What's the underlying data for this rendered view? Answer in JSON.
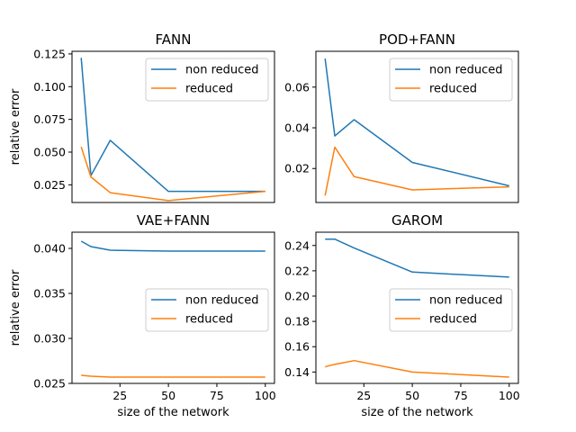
{
  "colors": {
    "non_reduced": "#1f77b4",
    "reduced": "#ff7f0e"
  },
  "chart_data": [
    {
      "type": "line",
      "title": "FANN",
      "xlabel": "",
      "ylabel": "relative error",
      "x": [
        5,
        10,
        20,
        50,
        100
      ],
      "xlim": [
        0.25,
        104.75
      ],
      "ylim": [
        0.0115,
        0.127
      ],
      "xticks": [],
      "yticks": [
        0.025,
        0.05,
        0.075,
        0.1,
        0.125
      ],
      "ytick_labels": [
        "0.025",
        "0.050",
        "0.075",
        "0.100",
        "0.125"
      ],
      "legend": "upper right",
      "series": [
        {
          "name": "non reduced",
          "values": [
            0.122,
            0.032,
            0.059,
            0.02,
            0.02
          ]
        },
        {
          "name": "reduced",
          "values": [
            0.054,
            0.031,
            0.019,
            0.013,
            0.02
          ]
        }
      ]
    },
    {
      "type": "line",
      "title": "POD+FANN",
      "xlabel": "",
      "ylabel": "",
      "x": [
        5,
        10,
        20,
        50,
        100
      ],
      "xlim": [
        0.25,
        104.75
      ],
      "ylim": [
        0.0033,
        0.0776
      ],
      "xticks": [],
      "yticks": [
        0.02,
        0.04,
        0.06
      ],
      "ytick_labels": [
        "0.02",
        "0.04",
        "0.06"
      ],
      "legend": "upper right",
      "series": [
        {
          "name": "non reduced",
          "values": [
            0.074,
            0.036,
            0.044,
            0.023,
            0.0115
          ]
        },
        {
          "name": "reduced",
          "values": [
            0.0067,
            0.0305,
            0.016,
            0.0095,
            0.011
          ]
        }
      ]
    },
    {
      "type": "line",
      "title": "VAE+FANN",
      "xlabel": "size of the network",
      "ylabel": "relative error",
      "x": [
        5,
        10,
        20,
        50,
        100
      ],
      "xlim": [
        0.25,
        104.75
      ],
      "ylim": [
        0.025,
        0.0418
      ],
      "xticks": [
        25,
        50,
        75,
        100
      ],
      "xtick_labels": [
        "25",
        "50",
        "75",
        "100"
      ],
      "yticks": [
        0.025,
        0.03,
        0.035,
        0.04
      ],
      "ytick_labels": [
        "0.025",
        "0.030",
        "0.035",
        "0.040"
      ],
      "legend": "center right",
      "series": [
        {
          "name": "non reduced",
          "values": [
            0.0408,
            0.0402,
            0.0398,
            0.0397,
            0.0397
          ]
        },
        {
          "name": "reduced",
          "values": [
            0.0259,
            0.0258,
            0.0257,
            0.0257,
            0.0257
          ]
        }
      ]
    },
    {
      "type": "line",
      "title": "GAROM",
      "xlabel": "size of the network",
      "ylabel": "",
      "x": [
        5,
        7,
        10,
        20,
        50,
        100
      ],
      "xlim": [
        0.25,
        104.75
      ],
      "ylim": [
        0.131,
        0.2505
      ],
      "xticks": [
        25,
        50,
        75,
        100
      ],
      "xtick_labels": [
        "25",
        "50",
        "75",
        "100"
      ],
      "yticks": [
        0.14,
        0.16,
        0.18,
        0.2,
        0.22,
        0.24
      ],
      "ytick_labels": [
        "0.14",
        "0.16",
        "0.18",
        "0.20",
        "0.22",
        "0.24"
      ],
      "legend": "center right",
      "series": [
        {
          "name": "non reduced",
          "values": [
            0.245,
            0.245,
            0.245,
            0.238,
            0.219,
            0.215
          ]
        },
        {
          "name": "reduced",
          "values": [
            0.144,
            0.145,
            0.146,
            0.149,
            0.14,
            0.136
          ]
        }
      ]
    }
  ]
}
